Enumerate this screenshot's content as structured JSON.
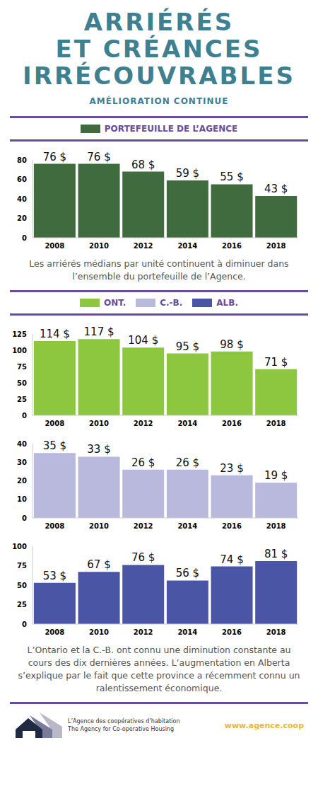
{
  "title": [
    "ARRIÉRÉS",
    "ET CRÉANCES",
    "IRRÉCOUVRABLES"
  ],
  "subtitle": "AMÉLIORATION CONTINUE",
  "chart_data": [
    {
      "type": "bar",
      "categories": [
        "2008",
        "2010",
        "2012",
        "2014",
        "2016",
        "2018"
      ],
      "series": [
        {
          "name": "PORTEFEUILLE DE L’AGENCE",
          "color": "#3f6b3f",
          "values": [
            76,
            76,
            68,
            59,
            55,
            43
          ],
          "value_labels": [
            "76 $",
            "76 $",
            "68 $",
            "59 $",
            "55 $",
            "43 $"
          ]
        }
      ],
      "ylim": [
        0,
        80
      ],
      "yticks": [
        0,
        20,
        40,
        60,
        80
      ],
      "grid": false,
      "data_labels": true,
      "annotations": [
        "Les arriérés médians par unité continuent à diminuer dans l’ensemble du portefeuille de l’Agence."
      ]
    },
    {
      "type": "bar",
      "categories": [
        "2008",
        "2010",
        "2012",
        "2014",
        "2016",
        "2018"
      ],
      "series": [
        {
          "name": "ONT.",
          "color": "#8dc63f",
          "values": [
            114,
            117,
            104,
            95,
            98,
            71
          ],
          "value_labels": [
            "114 $",
            "117 $",
            "104 $",
            "95 $",
            "98 $",
            "71 $"
          ]
        }
      ],
      "ylim": [
        0,
        125
      ],
      "yticks": [
        0,
        25,
        50,
        75,
        100,
        125
      ],
      "grid": false,
      "data_labels": true
    },
    {
      "type": "bar",
      "categories": [
        "2008",
        "2010",
        "2012",
        "2014",
        "2016",
        "2018"
      ],
      "series": [
        {
          "name": "C.-B.",
          "color": "#b9b9de",
          "values": [
            35,
            33,
            26,
            26,
            23,
            19
          ],
          "value_labels": [
            "35 $",
            "33 $",
            "26 $",
            "26 $",
            "23 $",
            "19 $"
          ]
        }
      ],
      "ylim": [
        0,
        40
      ],
      "yticks": [
        0,
        10,
        20,
        30,
        40
      ],
      "grid": false,
      "data_labels": true
    },
    {
      "type": "bar",
      "categories": [
        "2008",
        "2010",
        "2012",
        "2014",
        "2016",
        "2018"
      ],
      "series": [
        {
          "name": "ALB.",
          "color": "#4a55a6",
          "values": [
            53,
            67,
            76,
            56,
            74,
            81
          ],
          "value_labels": [
            "53 $",
            "67 $",
            "76 $",
            "56 $",
            "74 $",
            "81 $"
          ]
        }
      ],
      "ylim": [
        0,
        100
      ],
      "yticks": [
        0,
        25,
        50,
        75,
        100
      ],
      "grid": false,
      "data_labels": true,
      "annotations": [
        "L’Ontario et la C.-B. ont connu une diminution constante au cours des dix dernières années. L’augmentation en Alberta s’explique par le fait que cette province a récemment connu un ralentissement économique."
      ]
    }
  ],
  "footer": {
    "organization": [
      "L’Agence des coopératives d’habitation",
      "The Agency for Co-operative Housing"
    ],
    "website": "www.agence.coop"
  }
}
